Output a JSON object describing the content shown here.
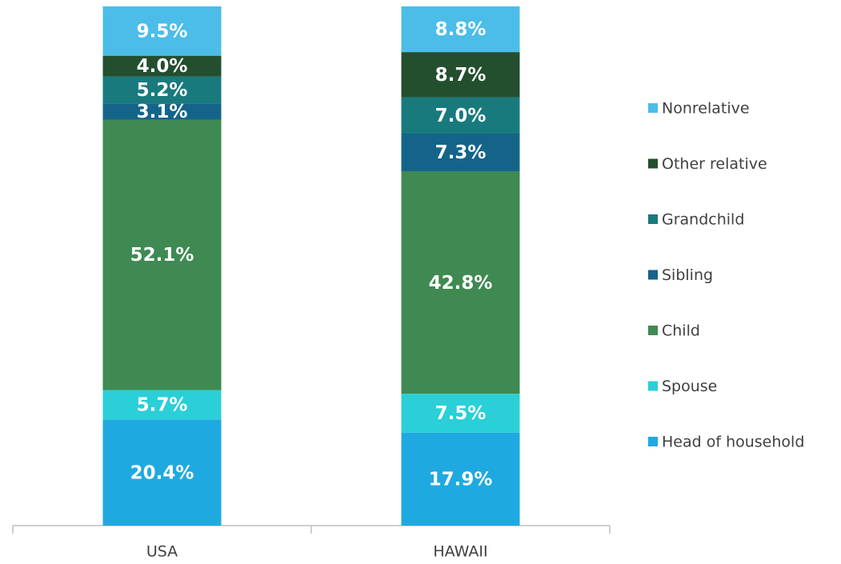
{
  "chart_data": {
    "type": "stacked_bar",
    "categories": [
      "USA",
      "HAWAII"
    ],
    "ylim": [
      0,
      100
    ],
    "legend": "right",
    "series": [
      {
        "name": "Head of household",
        "color": "#1fa9e1",
        "values": [
          20.4,
          17.9
        ],
        "value_labels": [
          "20.4%",
          "17.9%"
        ]
      },
      {
        "name": "Spouse",
        "color": "#2acfd8",
        "values": [
          5.7,
          7.5
        ],
        "value_labels": [
          "5.7%",
          "7.5%"
        ]
      },
      {
        "name": "Child",
        "color": "#3e8a52",
        "values": [
          52.1,
          42.8
        ],
        "value_labels": [
          "52.1%",
          "42.8%"
        ]
      },
      {
        "name": "Sibling",
        "color": "#14648a",
        "values": [
          3.1,
          7.3
        ],
        "value_labels": [
          "3.1%",
          "7.3%"
        ]
      },
      {
        "name": "Grandchild",
        "color": "#197a7d",
        "values": [
          5.2,
          7.0
        ],
        "value_labels": [
          "5.2%",
          "7.0%"
        ]
      },
      {
        "name": "Other relative",
        "color": "#234f2f",
        "values": [
          4.0,
          8.7
        ],
        "value_labels": [
          "4.0%",
          "8.7%"
        ]
      },
      {
        "name": "Nonrelative",
        "color": "#4bbde8",
        "values": [
          9.5,
          8.8
        ],
        "value_labels": [
          "9.5%",
          "8.8%"
        ]
      }
    ]
  }
}
